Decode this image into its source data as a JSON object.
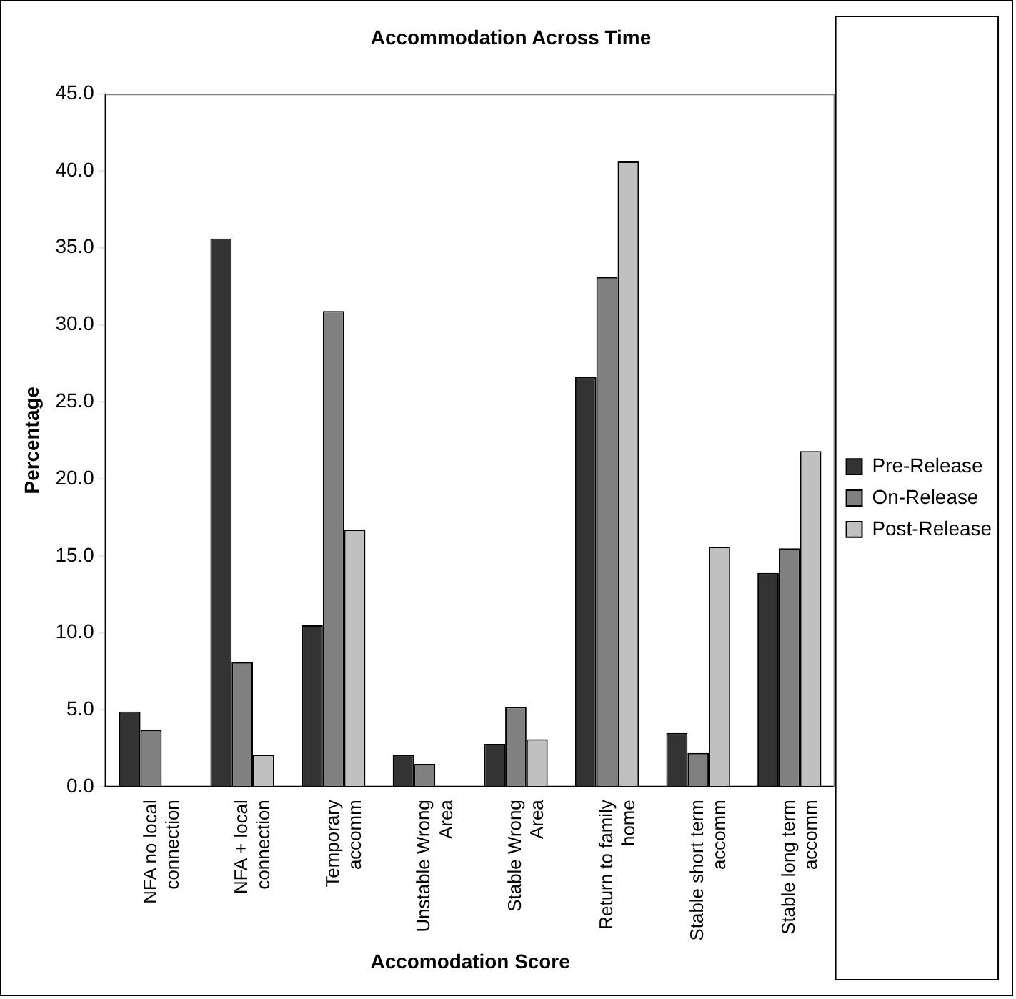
{
  "chart_data": {
    "type": "bar",
    "title": "Accommodation Across Time",
    "xlabel": "Accomodation Score",
    "ylabel": "Percentage",
    "categories": [
      "NFA no local connection",
      "NFA + local connection",
      "Temporary accomm",
      "Unstable Wrong Area",
      "Stable Wrong Area",
      "Return to family home",
      "Stable short term accomm",
      "Stable long term accomm"
    ],
    "series": [
      {
        "name": "Pre-Release",
        "color": "#333333",
        "values": [
          4.9,
          35.6,
          10.5,
          2.1,
          2.8,
          26.6,
          3.5,
          13.9
        ]
      },
      {
        "name": "On-Release",
        "color": "#808080",
        "values": [
          3.7,
          8.1,
          30.9,
          1.5,
          5.2,
          33.1,
          2.2,
          15.5
        ]
      },
      {
        "name": "Post-Release",
        "color": "#c0c0c0",
        "values": [
          0,
          2.1,
          16.7,
          0,
          3.1,
          40.6,
          15.6,
          21.8
        ]
      }
    ],
    "ylim": [
      0,
      45
    ],
    "yticks": [
      {
        "value": 0,
        "label": "0.0"
      },
      {
        "value": 5,
        "label": "5.0"
      },
      {
        "value": 10,
        "label": "10.0"
      },
      {
        "value": 15,
        "label": "15.0"
      },
      {
        "value": 20,
        "label": "20.0"
      },
      {
        "value": 25,
        "label": "25.0"
      },
      {
        "value": 30,
        "label": "30.0"
      },
      {
        "value": 35,
        "label": "35.0"
      },
      {
        "value": 40,
        "label": "40.0"
      },
      {
        "value": 45,
        "label": "45.0"
      }
    ],
    "grid": false,
    "legend": "right"
  }
}
